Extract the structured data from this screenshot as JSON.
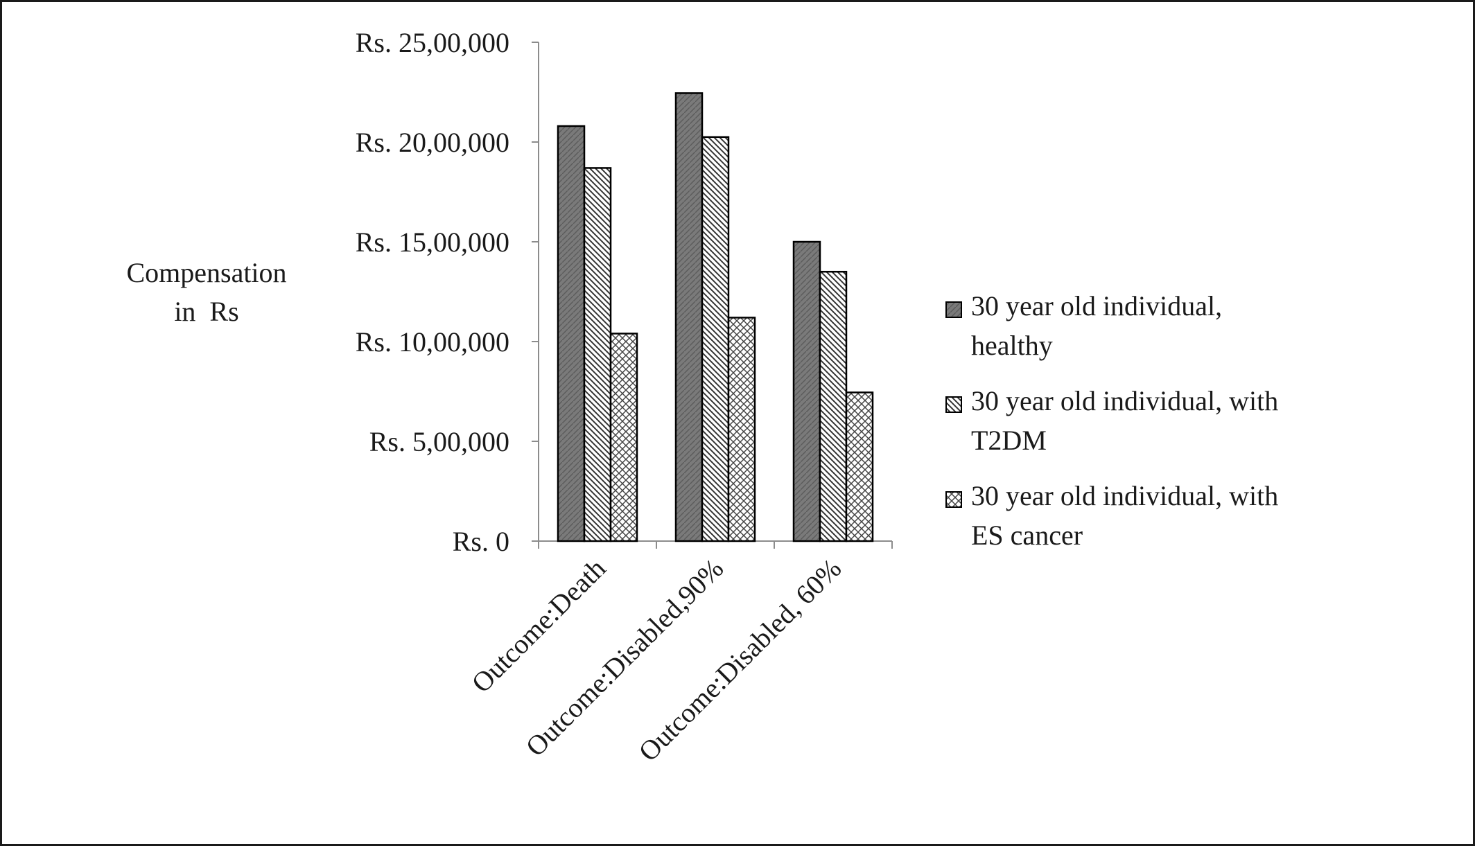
{
  "chart_data": {
    "type": "bar",
    "title": "",
    "ylabel": [
      "Compensation",
      "in  Rs"
    ],
    "xlabel": "",
    "categories": [
      "Outcome:Death",
      "Outcome:Disabled,90%",
      "Outcome:Disabled, 60%"
    ],
    "series": [
      {
        "name": "30 year old individual, healthy",
        "legend_lines": [
          "30 year old individual,",
          "healthy"
        ],
        "pattern": "solid-gray",
        "values": [
          2080000,
          2245000,
          1500000
        ]
      },
      {
        "name": "30 year old individual, with T2DM",
        "legend_lines": [
          "30 year old individual, with",
          "T2DM"
        ],
        "pattern": "diagonal-hatch",
        "values": [
          1870000,
          2025000,
          1350000
        ]
      },
      {
        "name": "30 year old individual, with ES cancer",
        "legend_lines": [
          "30 year old individual, with",
          "ES cancer"
        ],
        "pattern": "crosshatch",
        "values": [
          1040000,
          1120000,
          745000
        ]
      }
    ],
    "ylim": [
      0,
      2500000
    ],
    "ytick_values": [
      0,
      500000,
      1000000,
      1500000,
      2000000,
      2500000
    ],
    "ytick_labels": [
      "Rs. 0",
      "Rs. 5,00,000",
      "Rs. 10,00,000",
      "Rs. 15,00,000",
      "Rs. 20,00,000",
      "Rs. 25,00,000"
    ],
    "grid": false,
    "legend_position": "right"
  }
}
